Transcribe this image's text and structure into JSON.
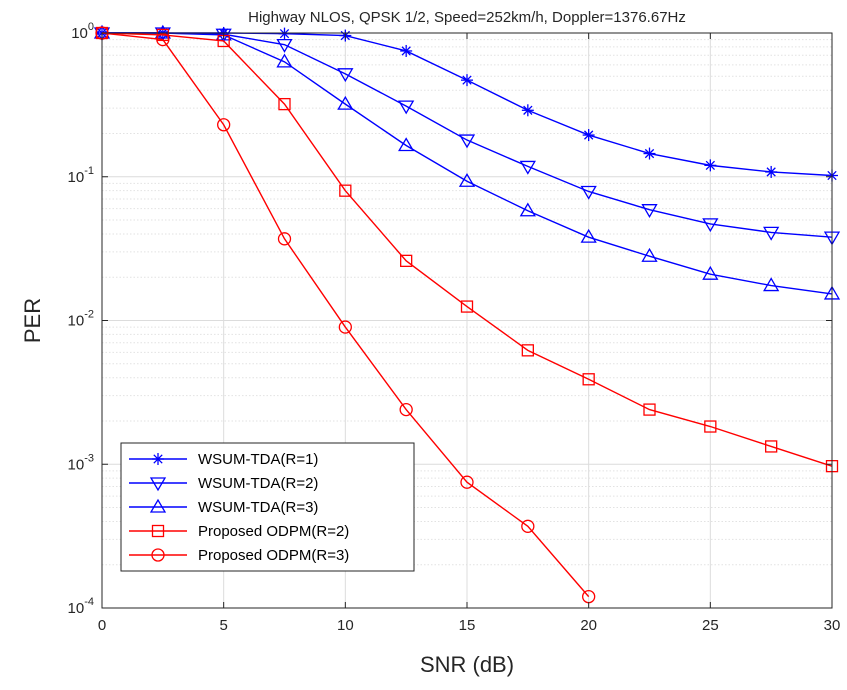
{
  "chart_data": {
    "type": "line",
    "title": "Highway NLOS, QPSK 1/2, Speed=252km/h, Doppler=1376.67Hz",
    "xlabel": "SNR (dB)",
    "ylabel": "PER",
    "xlim": [
      0,
      30
    ],
    "ylim": [
      0.0001,
      1
    ],
    "yscale": "log",
    "grid": true,
    "minor_grid": true,
    "legend_position": "bottom-left",
    "x_ticks": [
      0,
      5,
      10,
      15,
      20,
      25,
      30
    ],
    "x_tick_labels": [
      "0",
      "5",
      "10",
      "15",
      "20",
      "25",
      "30"
    ],
    "y_ticks": [
      1,
      0.1,
      0.01,
      0.001,
      0.0001
    ],
    "y_tick_labels": [
      {
        "base": "10",
        "exp": "0"
      },
      {
        "base": "10",
        "exp": "-1"
      },
      {
        "base": "10",
        "exp": "-2"
      },
      {
        "base": "10",
        "exp": "-3"
      },
      {
        "base": "10",
        "exp": "-4"
      }
    ],
    "series": [
      {
        "name": "WSUM-TDA(R=1)",
        "color": "#0000ff",
        "marker": "asterisk",
        "x": [
          0,
          2.5,
          5,
          7.5,
          10,
          12.5,
          15,
          17.5,
          20,
          22.5,
          25,
          27.5,
          30
        ],
        "y": [
          1,
          1,
          1,
          0.99,
          0.96,
          0.75,
          0.47,
          0.29,
          0.195,
          0.145,
          0.12,
          0.108,
          0.102
        ]
      },
      {
        "name": "WSUM-TDA(R=2)",
        "color": "#0000ff",
        "marker": "triangle-down",
        "x": [
          0,
          2.5,
          5,
          7.5,
          10,
          12.5,
          15,
          17.5,
          20,
          22.5,
          25,
          27.5,
          30
        ],
        "y": [
          1,
          1,
          0.98,
          0.83,
          0.52,
          0.31,
          0.18,
          0.118,
          0.079,
          0.059,
          0.047,
          0.041,
          0.038
        ]
      },
      {
        "name": "WSUM-TDA(R=3)",
        "color": "#0000ff",
        "marker": "triangle-up",
        "x": [
          0,
          2.5,
          5,
          7.5,
          10,
          12.5,
          15,
          17.5,
          20,
          22.5,
          25,
          27.5,
          30
        ],
        "y": [
          1,
          1,
          0.97,
          0.63,
          0.32,
          0.165,
          0.093,
          0.058,
          0.038,
          0.028,
          0.021,
          0.0175,
          0.0153
        ]
      },
      {
        "name": "Proposed ODPM(R=2)",
        "color": "#ff0000",
        "marker": "square",
        "x": [
          0,
          2.5,
          5,
          7.5,
          10,
          12.5,
          15,
          17.5,
          20,
          22.5,
          25,
          27.5,
          30
        ],
        "y": [
          1,
          0.97,
          0.88,
          0.32,
          0.08,
          0.026,
          0.0125,
          0.0062,
          0.0039,
          0.0024,
          0.00183,
          0.00133,
          0.00097
        ]
      },
      {
        "name": "Proposed ODPM(R=3)",
        "color": "#ff0000",
        "marker": "circle",
        "x": [
          0,
          2.5,
          5,
          7.5,
          10,
          12.5,
          15,
          17.5,
          20
        ],
        "y": [
          1,
          0.9,
          0.23,
          0.037,
          0.009,
          0.0024,
          0.00075,
          0.00037,
          0.00012
        ]
      }
    ]
  }
}
